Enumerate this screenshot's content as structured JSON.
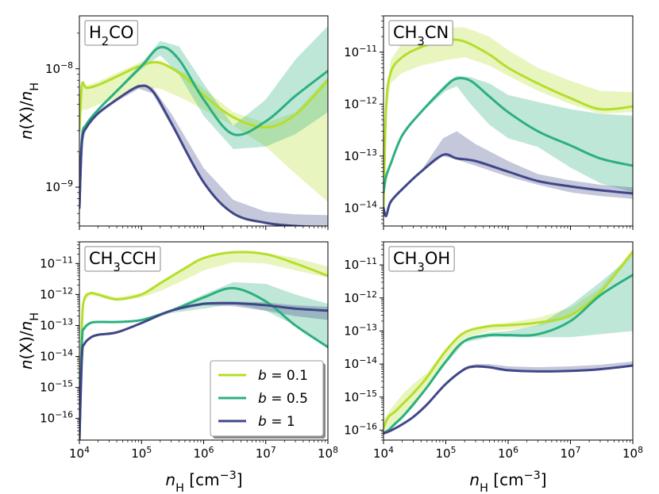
{
  "figure": {
    "xlabel": "n_H [cm^-3]",
    "ylabel": "n(X)/n_H"
  },
  "legend": {
    "location": "lower-right of bottom-left panel",
    "entries": [
      {
        "label": "b = 0.1",
        "color": "#b5de2b"
      },
      {
        "label": "b = 0.5",
        "color": "#2bb07f"
      },
      {
        "label": "b = 1",
        "color": "#404788"
      }
    ]
  },
  "chart_data": [
    {
      "type": "line",
      "panel": "top-left",
      "title": "H2CO",
      "xlabel": "",
      "ylabel": "n(X)/n_H",
      "xscale": "log",
      "yscale": "log",
      "xlim": [
        10000,
        100000000
      ],
      "ylim": [
        4.7e-10,
        2.8e-08
      ],
      "yticks": [
        {
          "v": 1e-09,
          "label": "10^-9"
        },
        {
          "v": 1e-08,
          "label": "10^-8"
        }
      ],
      "xticks": [],
      "series": [
        {
          "name": "b = 0.1",
          "color": "#b5de2b",
          "x": [
            10000,
            11000,
            13000,
            20000,
            40000,
            100000,
            200000,
            500000,
            1000000,
            3000000,
            10000000,
            30000000,
            100000000
          ],
          "y": [
            3e-09,
            7.3e-09,
            6.9e-09,
            7.3e-09,
            8.6e-09,
            1.07e-08,
            1.12e-08,
            8.5e-09,
            6e-09,
            3.9e-09,
            3.2e-09,
            4.1e-09,
            8e-09
          ],
          "lo": [
            2.5e-09,
            4.5e-09,
            4.5e-09,
            5e-09,
            5.6e-09,
            7e-09,
            6.8e-09,
            5.5e-09,
            4.5e-09,
            3.3e-09,
            2.2e-09,
            1.3e-09,
            7.5e-10
          ],
          "hi": [
            3.5e-09,
            7.8e-09,
            7.2e-09,
            7.8e-09,
            9.2e-09,
            1.15e-08,
            1.18e-08,
            9.2e-09,
            6.8e-09,
            4.3e-09,
            3.5e-09,
            4.3e-09,
            8.5e-09
          ]
        },
        {
          "name": "b = 0.5",
          "color": "#2bb07f",
          "x": [
            10000,
            11000,
            13000,
            20000,
            40000,
            100000,
            200000,
            400000,
            1000000,
            3000000,
            10000000,
            30000000,
            100000000
          ],
          "y": [
            7e-10,
            2.6e-09,
            3.4e-09,
            4.5e-09,
            6.5e-09,
            1.05e-08,
            1.52e-08,
            1.2e-08,
            5.5e-09,
            2.8e-09,
            3.6e-09,
            5.9e-09,
            9.6e-09
          ],
          "lo": [
            6.6e-10,
            2.5e-09,
            3.3e-09,
            4.4e-09,
            6.3e-09,
            1e-08,
            1.3e-08,
            9e-09,
            4e-09,
            2.1e-09,
            2.2e-09,
            2.8e-09,
            4.3e-09
          ],
          "hi": [
            7.4e-10,
            2.7e-09,
            3.5e-09,
            4.6e-09,
            6.7e-09,
            1.12e-08,
            1.72e-08,
            1.55e-08,
            7.5e-09,
            3.3e-09,
            5.5e-09,
            1.2e-08,
            2.3e-08
          ]
        },
        {
          "name": "b = 1",
          "color": "#404788",
          "x": [
            10000,
            11000,
            13000,
            20000,
            40000,
            90000,
            150000,
            300000,
            1000000,
            3000000,
            10000000,
            30000000,
            100000000
          ],
          "y": [
            6.7e-10,
            2.4e-09,
            3.2e-09,
            4.2e-09,
            5.5e-09,
            7.1e-09,
            6.5e-09,
            3.5e-09,
            1.1e-09,
            6e-10,
            5e-10,
            4.7e-10,
            4.6e-10
          ],
          "lo": [
            6.4e-10,
            2.3e-09,
            3.1e-09,
            4.1e-09,
            5.3e-09,
            6.8e-09,
            6.2e-09,
            3.3e-09,
            1.05e-09,
            5.8e-10,
            4.85e-10,
            4.6e-10,
            4.55e-10
          ],
          "hi": [
            7e-10,
            2.5e-09,
            3.3e-09,
            4.3e-09,
            5.7e-09,
            7.4e-09,
            7e-09,
            4.2e-09,
            1.45e-09,
            7.8e-10,
            6.2e-10,
            5.9e-10,
            5.8e-10
          ]
        }
      ]
    },
    {
      "type": "line",
      "panel": "top-right",
      "title": "CH3CN",
      "xlabel": "",
      "ylabel": "",
      "xscale": "log",
      "yscale": "log",
      "xlim": [
        10000,
        100000000
      ],
      "ylim": [
        4.5e-15,
        5e-11
      ],
      "yticks": [
        {
          "v": 1e-14,
          "label": "10^-14"
        },
        {
          "v": 1e-13,
          "label": "10^-13"
        },
        {
          "v": 1e-12,
          "label": "10^-12"
        },
        {
          "v": 1e-11,
          "label": "10^-11"
        }
      ],
      "xticks": [],
      "series": [
        {
          "name": "b = 0.1",
          "color": "#b5de2b",
          "x": [
            10000,
            11000,
            13000,
            20000,
            40000,
            100000,
            200000,
            500000,
            1000000,
            3000000,
            10000000,
            30000000,
            100000000
          ],
          "y": [
            1e-14,
            8e-13,
            4e-12,
            8e-12,
            1.25e-11,
            1.7e-11,
            1.6e-11,
            9e-12,
            5e-12,
            2.5e-12,
            1.3e-12,
            8e-13,
            9e-13
          ],
          "lo": [
            9e-15,
            6e-13,
            2.5e-12,
            4e-12,
            5.5e-12,
            7e-12,
            8e-12,
            5.5e-12,
            3.5e-12,
            1.8e-12,
            1e-12,
            6.5e-13,
            7e-13
          ],
          "hi": [
            1.2e-14,
            1e-12,
            7e-12,
            1.5e-11,
            2.2e-11,
            3e-11,
            3e-11,
            2e-11,
            1.1e-11,
            5e-12,
            2.8e-12,
            1.8e-12,
            1.7e-12
          ]
        },
        {
          "name": "b = 0.5",
          "color": "#2bb07f",
          "x": [
            10000,
            11000,
            13000,
            20000,
            40000,
            100000,
            150000,
            250000,
            500000,
            1000000,
            3000000,
            10000000,
            30000000,
            100000000
          ],
          "y": [
            2e-14,
            4e-14,
            7e-14,
            2.5e-13,
            7e-13,
            2.2e-12,
            3.1e-12,
            2.8e-12,
            1.4e-12,
            7e-13,
            3e-13,
            1.6e-13,
            9e-14,
            6.5e-14
          ],
          "lo": [
            1.9e-14,
            3.8e-14,
            6.8e-14,
            2.4e-13,
            6.8e-13,
            1.8e-12,
            2.2e-12,
            1e-12,
            4e-13,
            2.2e-13,
            1.5e-13,
            6e-14,
            3e-14,
            2e-14
          ],
          "hi": [
            2.1e-14,
            4.2e-14,
            7.2e-14,
            2.6e-13,
            7.2e-13,
            2.5e-12,
            3.5e-12,
            3.3e-12,
            2.5e-12,
            1.5e-12,
            1.1e-12,
            8e-13,
            6.5e-13,
            6e-13
          ]
        },
        {
          "name": "b = 1",
          "color": "#404788",
          "x": [
            10000,
            11000,
            13000,
            20000,
            40000,
            90000,
            150000,
            300000,
            1000000,
            3000000,
            10000000,
            30000000,
            100000000
          ],
          "y": [
            1e-14,
            7e-15,
            1.3e-14,
            2.3e-14,
            5e-14,
            1.05e-13,
            9e-14,
            8e-14,
            5e-14,
            3.3e-14,
            2.6e-14,
            2.2e-14,
            1.9e-14
          ],
          "lo": [
            9.5e-15,
            6.8e-15,
            1.25e-14,
            2.2e-14,
            4.8e-14,
            1e-13,
            8.5e-14,
            6.5e-14,
            4e-14,
            2.8e-14,
            2e-14,
            1.7e-14,
            1.5e-14
          ],
          "hi": [
            1.05e-14,
            7.2e-15,
            1.35e-14,
            2.4e-14,
            5.2e-14,
            2.2e-13,
            3e-13,
            1.7e-13,
            8e-14,
            4.5e-14,
            3.4e-14,
            2.8e-14,
            2.5e-14
          ]
        }
      ]
    },
    {
      "type": "line",
      "panel": "bottom-left",
      "title": "CH3CCH",
      "xlabel": "n_H [cm^-3]",
      "ylabel": "n(X)/n_H",
      "xscale": "log",
      "yscale": "log",
      "xlim": [
        10000,
        100000000
      ],
      "ylim": [
        2e-17,
        5e-11
      ],
      "yticks": [
        {
          "v": 1e-16,
          "label": "10^-16"
        },
        {
          "v": 1e-15,
          "label": "10^-15"
        },
        {
          "v": 1e-14,
          "label": "10^-14"
        },
        {
          "v": 1e-13,
          "label": "10^-13"
        },
        {
          "v": 1e-12,
          "label": "10^-12"
        },
        {
          "v": 1e-11,
          "label": "10^-11"
        }
      ],
      "xticks": [
        {
          "v": 10000,
          "label": "10^4"
        },
        {
          "v": 100000,
          "label": "10^5"
        },
        {
          "v": 1000000,
          "label": "10^6"
        },
        {
          "v": 10000000,
          "label": "10^7"
        },
        {
          "v": 100000000,
          "label": "10^8"
        }
      ],
      "series": [
        {
          "name": "b = 0.1",
          "color": "#b5de2b",
          "x": [
            10000,
            11000,
            12000,
            15000,
            20000,
            40000,
            100000,
            200000,
            500000,
            1000000,
            3000000,
            10000000,
            30000000,
            100000000
          ],
          "y": [
            2e-17,
            1e-13,
            7e-13,
            1.1e-12,
            1e-12,
            7e-13,
            1e-12,
            2.3e-12,
            7e-12,
            1.5e-11,
            2.3e-11,
            2e-11,
            1e-11,
            4e-12
          ],
          "lo": [
            1.8e-17,
            9e-14,
            6e-13,
            9.5e-13,
            8.5e-13,
            6e-13,
            8e-13,
            1.3e-12,
            3e-12,
            6e-12,
            1.1e-11,
            1e-11,
            6e-12,
            3.5e-12
          ],
          "hi": [
            2.2e-17,
            1.1e-13,
            8e-13,
            1.2e-12,
            1.1e-12,
            8e-13,
            1.1e-12,
            2.6e-12,
            8e-12,
            1.6e-11,
            2.4e-11,
            2.2e-11,
            1.5e-11,
            8e-12
          ]
        },
        {
          "name": "b = 0.5",
          "color": "#2bb07f",
          "x": [
            10000,
            11000,
            12000,
            15000,
            20000,
            40000,
            100000,
            300000,
            1000000,
            3000000,
            10000000,
            30000000,
            100000000
          ],
          "y": [
            2e-17,
            3e-14,
            8e-14,
            1.2e-13,
            1.3e-13,
            1.3e-13,
            1.5e-13,
            3e-13,
            8e-13,
            1.6e-12,
            6e-13,
            1e-13,
            2e-14
          ],
          "lo": [
            1.8e-17,
            2.8e-14,
            7.5e-14,
            1.15e-13,
            1.25e-13,
            1.25e-13,
            1.4e-13,
            2.5e-13,
            3.5e-13,
            5e-13,
            3e-13,
            1e-13,
            2e-14
          ],
          "hi": [
            2.2e-17,
            3.2e-14,
            8.5e-14,
            1.25e-13,
            1.35e-13,
            1.35e-13,
            1.6e-13,
            3.3e-13,
            1e-12,
            2.5e-12,
            2.2e-12,
            1e-12,
            5e-13
          ]
        },
        {
          "name": "b = 1",
          "color": "#404788",
          "x": [
            10000,
            11000,
            12000,
            15000,
            20000,
            40000,
            100000,
            300000,
            1000000,
            3000000,
            10000000,
            30000000,
            100000000
          ],
          "y": [
            2e-17,
            1e-14,
            2.5e-14,
            4e-14,
            5e-14,
            6e-14,
            1.2e-13,
            3e-13,
            5e-13,
            5.2e-13,
            4.5e-13,
            3.5e-13,
            3e-13
          ],
          "lo": [
            1.8e-17,
            9.5e-15,
            2.4e-14,
            3.9e-14,
            4.8e-14,
            5.8e-14,
            1.15e-13,
            2.8e-13,
            4.5e-13,
            4.2e-13,
            3e-13,
            2e-13,
            1.5e-13
          ],
          "hi": [
            2.2e-17,
            1.05e-14,
            2.6e-14,
            4.1e-14,
            5.2e-14,
            6.2e-14,
            1.25e-13,
            3.2e-13,
            5.6e-13,
            6e-13,
            5.5e-13,
            4.5e-13,
            4e-13
          ]
        }
      ]
    },
    {
      "type": "line",
      "panel": "bottom-right",
      "title": "CH3OH",
      "xlabel": "n_H [cm^-3]",
      "ylabel": "",
      "xscale": "log",
      "yscale": "log",
      "xlim": [
        10000,
        100000000
      ],
      "ylim": [
        5e-17,
        5e-11
      ],
      "yticks": [
        {
          "v": 1e-16,
          "label": "10^-16"
        },
        {
          "v": 1e-15,
          "label": "10^-15"
        },
        {
          "v": 1e-14,
          "label": "10^-14"
        },
        {
          "v": 1e-13,
          "label": "10^-13"
        },
        {
          "v": 1e-12,
          "label": "10^-12"
        },
        {
          "v": 1e-11,
          "label": "10^-11"
        }
      ],
      "xticks": [
        {
          "v": 10000,
          "label": "10^4"
        },
        {
          "v": 100000,
          "label": "10^5"
        },
        {
          "v": 1000000,
          "label": "10^6"
        },
        {
          "v": 10000000,
          "label": "10^7"
        },
        {
          "v": 100000000,
          "label": "10^8"
        }
      ],
      "series": [
        {
          "name": "b = 0.1",
          "color": "#b5de2b",
          "x": [
            10000,
            12000,
            15000,
            20000,
            30000,
            50000,
            100000,
            200000,
            500000,
            1000000,
            3000000,
            10000000,
            30000000,
            100000000
          ],
          "y": [
            1.2e-16,
            2.5e-16,
            3.5e-16,
            6e-16,
            1.3e-15,
            4e-15,
            2.5e-14,
            9e-14,
            1.4e-13,
            1.5e-13,
            1.8e-13,
            3e-13,
            1.5e-12,
            2.5e-11
          ],
          "lo": [
            8e-17,
            1.2e-16,
            1.6e-16,
            2.5e-16,
            6e-16,
            2e-15,
            1.5e-14,
            6e-14,
            1e-13,
            1.1e-13,
            1.4e-13,
            2.5e-13,
            1.3e-12,
            2e-11
          ],
          "hi": [
            2e-16,
            3.5e-16,
            6e-16,
            1.2e-15,
            2.5e-15,
            5.5e-15,
            3e-14,
            1e-13,
            1.6e-13,
            1.8e-13,
            2.5e-13,
            5e-13,
            2e-12,
            3e-11
          ]
        },
        {
          "name": "b = 0.5",
          "color": "#2bb07f",
          "x": [
            10000,
            12000,
            15000,
            20000,
            30000,
            50000,
            100000,
            200000,
            500000,
            1000000,
            3000000,
            10000000,
            30000000,
            100000000
          ],
          "y": [
            8e-17,
            1e-16,
            1.5e-16,
            2.5e-16,
            6e-16,
            2e-15,
            1.2e-14,
            5e-14,
            7.5e-14,
            7.5e-14,
            8e-14,
            2e-13,
            1.2e-12,
            5e-12
          ],
          "lo": [
            7e-17,
            9e-17,
            1.3e-16,
            2.2e-16,
            5e-16,
            1.8e-15,
            1e-14,
            4.5e-14,
            6.5e-14,
            6.5e-14,
            6.5e-14,
            6.5e-14,
            8e-14,
            1e-13
          ],
          "hi": [
            9e-17,
            1.1e-16,
            1.7e-16,
            2.8e-16,
            7e-16,
            2.2e-15,
            1.4e-14,
            5.5e-14,
            9e-14,
            1e-13,
            1.5e-13,
            6e-13,
            3e-12,
            2e-11
          ]
        },
        {
          "name": "b = 1",
          "color": "#404788",
          "x": [
            10000,
            12000,
            15000,
            20000,
            30000,
            50000,
            100000,
            200000,
            300000,
            500000,
            1000000,
            3000000,
            10000000,
            30000000,
            100000000
          ],
          "y": [
            8e-17,
            9e-17,
            1.1e-16,
            1.5e-16,
            2.5e-16,
            6e-16,
            2.5e-15,
            7e-15,
            8.5e-15,
            8e-15,
            6.5e-15,
            6e-15,
            6.2e-15,
            7e-15,
            9e-15
          ],
          "lo": [
            7.5e-17,
            8.5e-17,
            1.05e-16,
            1.45e-16,
            2.4e-16,
            5.8e-16,
            2.4e-15,
            6.6e-15,
            7.8e-15,
            7.5e-15,
            6.1e-15,
            5.6e-15,
            5.8e-15,
            6.6e-15,
            8.5e-15
          ],
          "hi": [
            8.5e-17,
            9.5e-17,
            1.15e-16,
            1.55e-16,
            2.6e-16,
            6.2e-16,
            2.7e-15,
            8e-15,
            1e-14,
            1e-14,
            8.5e-15,
            8e-15,
            8.5e-15,
            9.5e-15,
            1.2e-14
          ]
        }
      ]
    }
  ]
}
